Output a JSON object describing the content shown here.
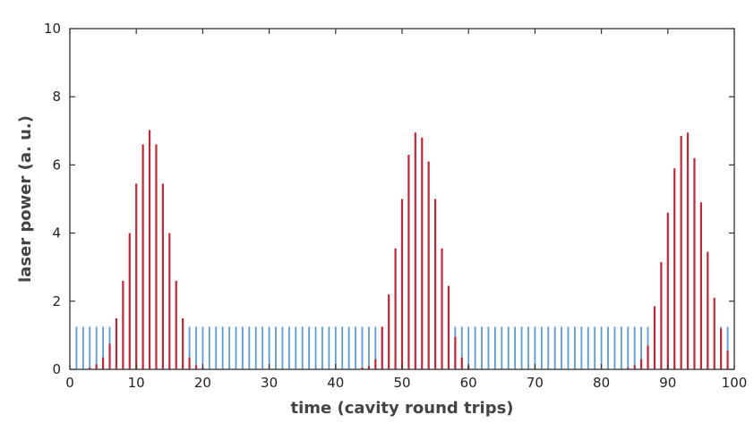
{
  "chart_data": {
    "type": "bar",
    "title": "",
    "xlabel": "time (cavity round trips)",
    "ylabel": "laser power (a. u.)",
    "xlim": [
      0,
      100
    ],
    "ylim": [
      0,
      10
    ],
    "xticks": [
      0,
      10,
      20,
      30,
      40,
      50,
      60,
      70,
      80,
      90,
      100
    ],
    "yticks": [
      0,
      2,
      4,
      6,
      8,
      10
    ],
    "grid": false,
    "legend": null,
    "series": [
      {
        "name": "blue",
        "color": "#5b9bd5",
        "x": [
          1,
          2,
          3,
          4,
          5,
          6,
          18,
          19,
          20,
          21,
          22,
          23,
          24,
          25,
          26,
          27,
          28,
          29,
          30,
          31,
          32,
          33,
          34,
          35,
          36,
          37,
          38,
          39,
          40,
          41,
          42,
          43,
          44,
          45,
          46,
          47,
          58,
          59,
          60,
          61,
          62,
          63,
          64,
          65,
          66,
          67,
          68,
          69,
          70,
          71,
          72,
          73,
          74,
          75,
          76,
          77,
          78,
          79,
          80,
          81,
          82,
          83,
          84,
          85,
          86,
          87,
          98,
          99
        ],
        "values": [
          1.25,
          1.25,
          1.25,
          1.25,
          1.25,
          1.25,
          1.25,
          1.25,
          1.25,
          1.25,
          1.25,
          1.25,
          1.25,
          1.25,
          1.25,
          1.25,
          1.25,
          1.25,
          1.25,
          1.25,
          1.25,
          1.25,
          1.25,
          1.25,
          1.25,
          1.25,
          1.25,
          1.25,
          1.25,
          1.25,
          1.25,
          1.25,
          1.25,
          1.25,
          1.25,
          1.25,
          1.25,
          1.25,
          1.25,
          1.25,
          1.25,
          1.25,
          1.25,
          1.25,
          1.25,
          1.25,
          1.25,
          1.25,
          1.25,
          1.25,
          1.25,
          1.25,
          1.25,
          1.25,
          1.25,
          1.25,
          1.25,
          1.25,
          1.25,
          1.25,
          1.25,
          1.25,
          1.25,
          1.25,
          1.25,
          1.25,
          1.25,
          1.25
        ]
      },
      {
        "name": "red",
        "color": "#c0283a",
        "x": [
          3,
          4,
          5,
          6,
          7,
          8,
          9,
          10,
          11,
          12,
          13,
          14,
          15,
          16,
          17,
          18,
          19,
          20,
          44,
          45,
          46,
          47,
          48,
          49,
          50,
          51,
          52,
          53,
          54,
          55,
          56,
          57,
          58,
          59,
          60,
          84,
          85,
          86,
          87,
          88,
          89,
          90,
          91,
          92,
          93,
          94,
          95,
          96,
          97,
          98,
          99
        ],
        "values": [
          0.05,
          0.15,
          0.35,
          0.75,
          1.5,
          2.6,
          4.0,
          5.45,
          6.6,
          7.02,
          6.6,
          5.45,
          4.0,
          2.6,
          1.5,
          0.35,
          0.12,
          0.05,
          0.05,
          0.1,
          0.3,
          1.25,
          2.2,
          3.55,
          5.0,
          6.3,
          6.95,
          6.8,
          6.1,
          5.0,
          3.55,
          2.45,
          0.95,
          0.35,
          0.1,
          0.05,
          0.12,
          0.3,
          0.7,
          1.85,
          3.15,
          4.6,
          5.9,
          6.85,
          6.95,
          6.2,
          4.9,
          3.45,
          2.1,
          1.2,
          0.55
        ]
      }
    ]
  }
}
